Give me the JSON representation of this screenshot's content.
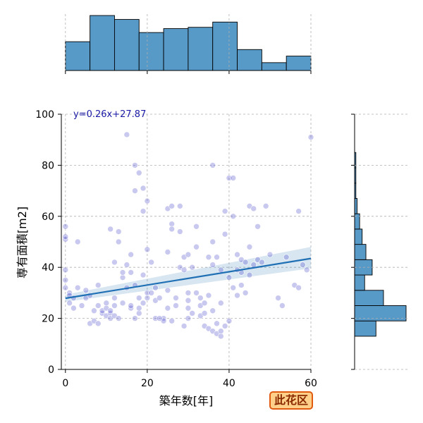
{
  "chart_data": {
    "type": "scatter",
    "xlabel": "築年数[年]",
    "ylabel": "専有面積[m2]",
    "xlim": [
      -1,
      60
    ],
    "ylim": [
      0,
      100
    ],
    "xticks": [
      "0",
      "20",
      "40",
      "60"
    ],
    "yticks": [
      "0",
      "20",
      "40",
      "60",
      "80",
      "100"
    ],
    "grid": true,
    "regression": {
      "label": "y=0.26x+27.87",
      "slope": 0.26,
      "intercept": 27.87,
      "band_low": [
        26.5,
        39.6
      ],
      "band_high": [
        29.3,
        48.0
      ]
    },
    "marginal_x": {
      "bin_edges": [
        0,
        6,
        12,
        18,
        24,
        30,
        36,
        42,
        48,
        54,
        60
      ],
      "counts": [
        22,
        42,
        39,
        29,
        32,
        33,
        37,
        16,
        6,
        11
      ]
    },
    "marginal_y": {
      "bin_edges": [
        13,
        19,
        25,
        31,
        37,
        43,
        49,
        55,
        61,
        67,
        73,
        79,
        85,
        91
      ],
      "counts": [
        17,
        41,
        23,
        8,
        14,
        9,
        6,
        4,
        2,
        1,
        1,
        1,
        0
      ]
    },
    "points": [
      [
        0,
        51
      ],
      [
        0,
        52
      ],
      [
        0,
        56
      ],
      [
        0,
        39
      ],
      [
        0,
        35
      ],
      [
        1,
        30
      ],
      [
        1,
        29
      ],
      [
        1,
        26
      ],
      [
        2,
        24
      ],
      [
        2,
        28
      ],
      [
        3,
        32
      ],
      [
        3,
        50
      ],
      [
        4,
        25
      ],
      [
        5,
        31
      ],
      [
        5,
        28
      ],
      [
        6,
        29
      ],
      [
        6,
        18
      ],
      [
        7,
        23
      ],
      [
        7,
        19
      ],
      [
        8,
        25
      ],
      [
        8,
        33
      ],
      [
        8,
        18
      ],
      [
        9,
        22
      ],
      [
        9,
        23
      ],
      [
        10,
        21
      ],
      [
        10,
        24
      ],
      [
        10,
        26
      ],
      [
        11,
        55
      ],
      [
        11,
        22
      ],
      [
        11,
        20
      ],
      [
        11,
        23
      ],
      [
        12,
        25
      ],
      [
        12,
        21
      ],
      [
        12,
        28
      ],
      [
        12,
        42
      ],
      [
        13,
        54
      ],
      [
        13,
        50
      ],
      [
        13,
        20
      ],
      [
        14,
        26
      ],
      [
        14,
        36
      ],
      [
        15,
        41
      ],
      [
        15,
        32
      ],
      [
        16,
        24
      ],
      [
        16,
        45
      ],
      [
        16,
        38
      ],
      [
        16,
        25
      ],
      [
        17,
        70
      ],
      [
        17,
        80
      ],
      [
        17,
        33
      ],
      [
        17,
        20
      ],
      [
        18,
        77
      ],
      [
        18,
        28
      ],
      [
        18,
        22
      ],
      [
        18,
        24
      ],
      [
        19,
        71
      ],
      [
        19,
        62
      ],
      [
        19,
        37
      ],
      [
        19,
        26
      ],
      [
        20,
        66
      ],
      [
        20,
        47
      ],
      [
        20,
        28
      ],
      [
        20,
        30
      ],
      [
        21,
        42
      ],
      [
        21,
        30
      ],
      [
        22,
        32
      ],
      [
        22,
        27
      ],
      [
        22,
        20
      ],
      [
        23,
        28
      ],
      [
        24,
        20
      ],
      [
        24,
        19
      ],
      [
        25,
        63
      ],
      [
        25,
        46
      ],
      [
        25,
        31
      ],
      [
        25,
        24
      ],
      [
        26,
        57
      ],
      [
        26,
        55
      ],
      [
        26,
        64
      ],
      [
        26,
        19
      ],
      [
        27,
        28
      ],
      [
        27,
        25
      ],
      [
        28,
        40
      ],
      [
        28,
        64
      ],
      [
        28,
        54
      ],
      [
        29,
        44
      ],
      [
        29,
        39
      ],
      [
        29,
        17
      ],
      [
        30,
        45
      ],
      [
        30,
        30
      ],
      [
        30,
        27
      ],
      [
        30,
        24
      ],
      [
        30,
        20
      ],
      [
        31,
        40
      ],
      [
        31,
        22
      ],
      [
        32,
        56
      ],
      [
        32,
        48
      ],
      [
        32,
        30
      ],
      [
        33,
        28
      ],
      [
        33,
        25
      ],
      [
        33,
        21
      ],
      [
        34,
        26
      ],
      [
        34,
        22
      ],
      [
        34,
        17
      ],
      [
        35,
        44
      ],
      [
        35,
        29
      ],
      [
        35,
        16
      ],
      [
        36,
        80
      ],
      [
        36,
        50
      ],
      [
        36,
        23
      ],
      [
        36,
        15
      ],
      [
        37,
        44
      ],
      [
        37,
        18
      ],
      [
        37,
        14
      ],
      [
        38,
        26
      ],
      [
        38,
        39
      ],
      [
        38,
        13
      ],
      [
        39,
        62
      ],
      [
        39,
        53
      ],
      [
        39,
        17
      ],
      [
        40,
        75
      ],
      [
        40,
        36
      ],
      [
        40,
        19
      ],
      [
        41,
        75
      ],
      [
        41,
        60
      ],
      [
        41,
        32
      ],
      [
        42,
        45
      ],
      [
        42,
        29
      ],
      [
        43,
        43
      ],
      [
        43,
        38
      ],
      [
        43,
        33
      ],
      [
        44,
        42
      ],
      [
        44,
        30
      ],
      [
        45,
        64
      ],
      [
        45,
        48
      ],
      [
        45,
        37
      ],
      [
        46,
        63
      ],
      [
        46,
        41
      ],
      [
        47,
        56
      ],
      [
        47,
        43
      ],
      [
        48,
        42
      ],
      [
        49,
        64
      ],
      [
        50,
        45
      ],
      [
        52,
        28
      ],
      [
        53,
        25
      ],
      [
        54,
        44
      ],
      [
        56,
        33
      ],
      [
        57,
        62
      ],
      [
        57,
        32
      ],
      [
        58,
        41
      ],
      [
        59,
        39
      ],
      [
        60,
        91
      ],
      [
        14,
        38
      ],
      [
        23,
        20
      ],
      [
        36,
        41
      ],
      [
        38,
        15
      ],
      [
        42,
        39
      ],
      [
        15,
        92
      ],
      [
        0,
        32
      ]
    ]
  }
}
